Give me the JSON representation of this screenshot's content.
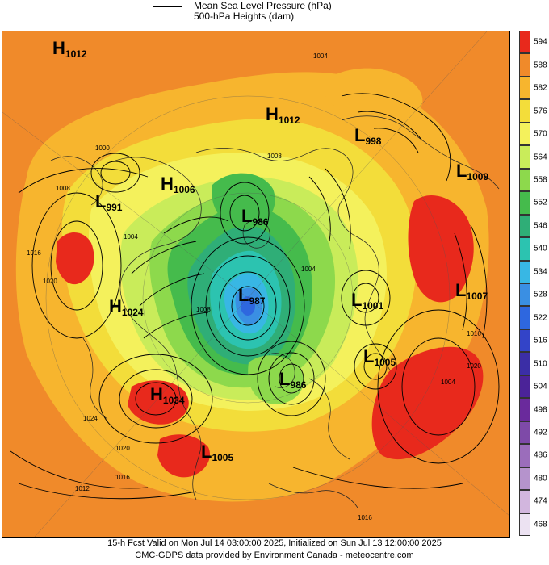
{
  "legend": {
    "line_label": "Mean Sea Level Pressure (hPa)",
    "fill_label": "500-hPa Heights (dam)"
  },
  "colorbar": {
    "levels": [
      "594",
      "588",
      "582",
      "576",
      "570",
      "564",
      "558",
      "552",
      "546",
      "540",
      "534",
      "528",
      "522",
      "516",
      "510",
      "504",
      "498",
      "492",
      "486",
      "480",
      "474",
      "468"
    ],
    "colors": [
      "#e8291c",
      "#f08a2a",
      "#f7b52e",
      "#f3dd3a",
      "#f4f15c",
      "#c9ec5a",
      "#8dd94c",
      "#45bb4c",
      "#2fae77",
      "#2cc3b0",
      "#38b7e4",
      "#3a8fe3",
      "#2e67df",
      "#3344c8",
      "#3b2ea6",
      "#4b2398",
      "#6a2a9c",
      "#7e4aa8",
      "#9b6dbb",
      "#b593cc",
      "#d2b6de",
      "#ece2f2"
    ]
  },
  "pressure_systems": [
    {
      "type": "H",
      "value": "1012"
    },
    {
      "type": "H",
      "value": "1012"
    },
    {
      "type": "L",
      "value": "998"
    },
    {
      "type": "L",
      "value": "1009"
    },
    {
      "type": "H",
      "value": "1006"
    },
    {
      "type": "L",
      "value": "991"
    },
    {
      "type": "L",
      "value": "986"
    },
    {
      "type": "L",
      "value": "987"
    },
    {
      "type": "H",
      "value": "1024"
    },
    {
      "type": "L",
      "value": "1001"
    },
    {
      "type": "L",
      "value": "1007"
    },
    {
      "type": "L",
      "value": "1005"
    },
    {
      "type": "L",
      "value": "986"
    },
    {
      "type": "H",
      "value": "1034"
    },
    {
      "type": "L",
      "value": "1005"
    }
  ],
  "isobar_labels": [
    "1004",
    "1000",
    "1008",
    "1016",
    "1020",
    "1008",
    "1004",
    "1004",
    "1008",
    "1024",
    "1020",
    "1016",
    "1012",
    "1016",
    "1016",
    "1004",
    "1020"
  ],
  "footer": {
    "line1": "15-h Fcst Valid on Mon Jul 14 03:00:00 2025, Initialized on Sun Jul 13 12:00:00 2025",
    "line2": "CMC-GDPS data provided by Environment Canada - meteocentre.com"
  }
}
